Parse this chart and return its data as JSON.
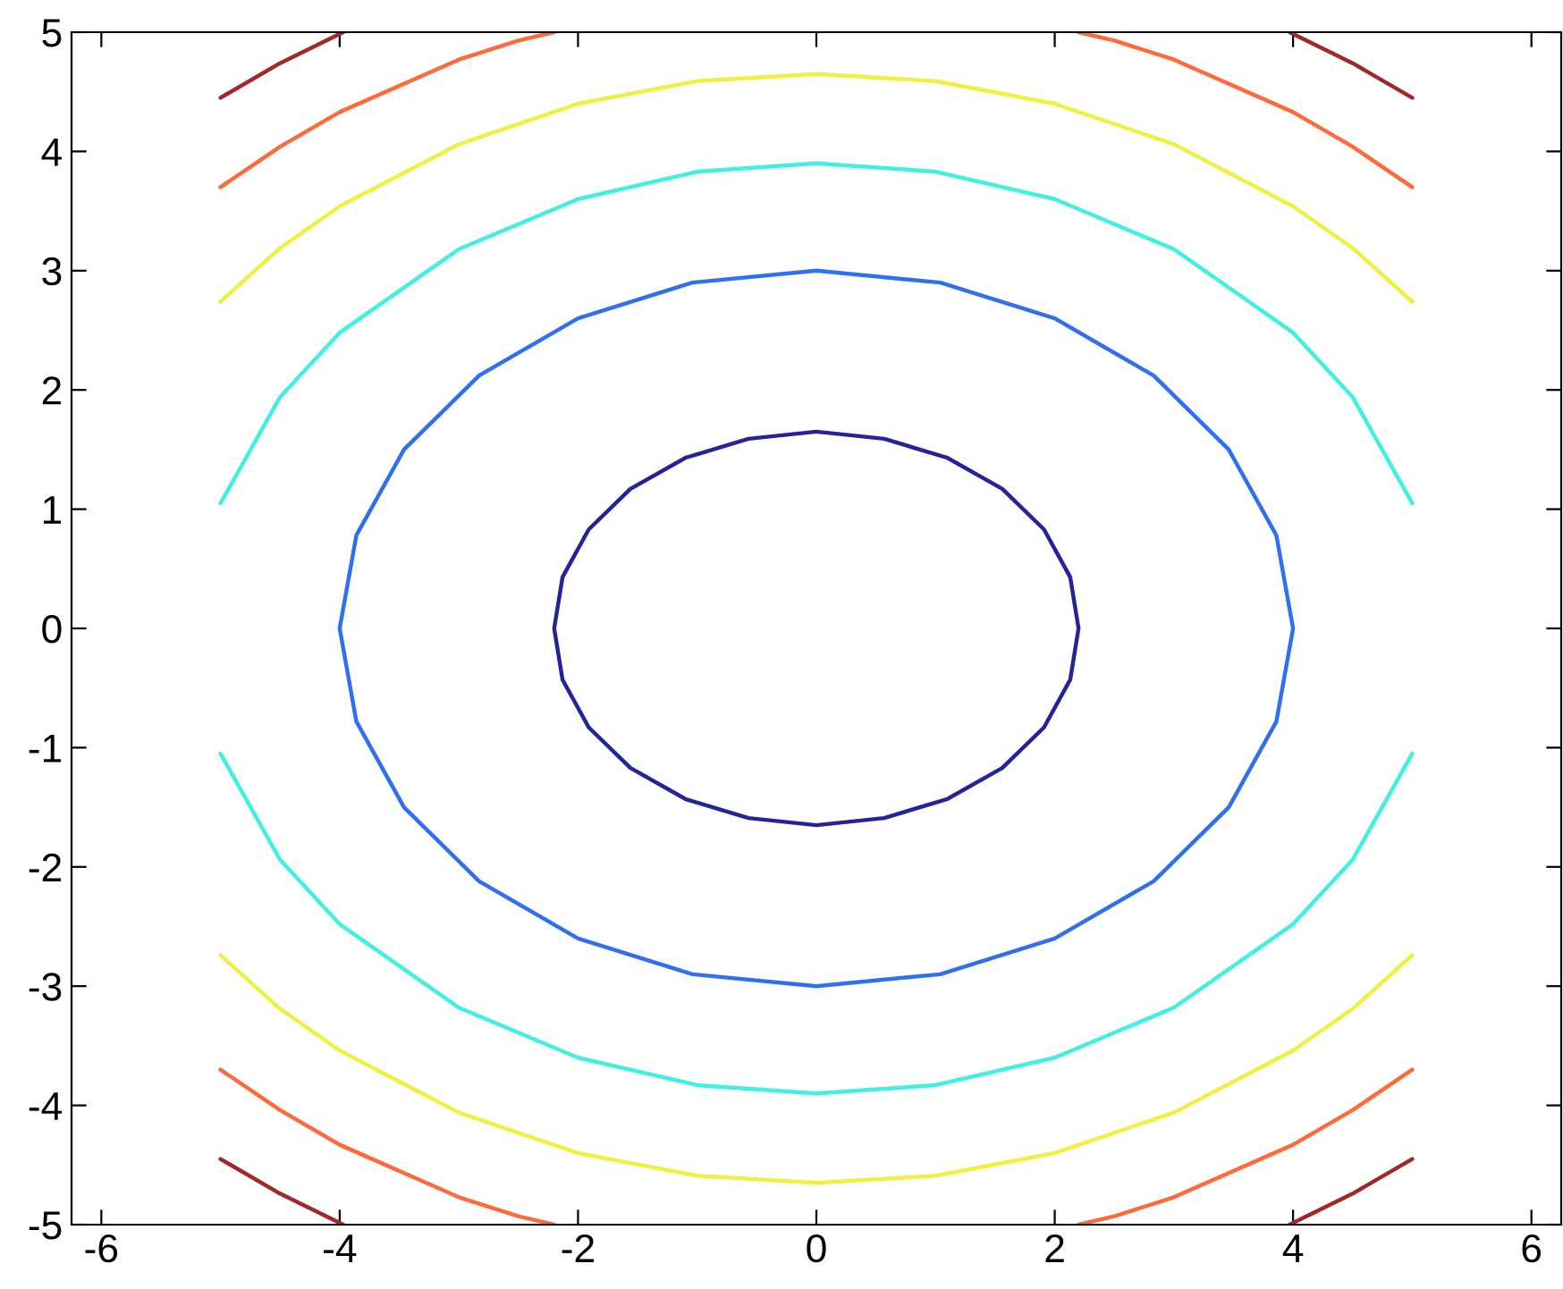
{
  "chart_data": {
    "type": "line",
    "xlim": [
      -6.25,
      6.25
    ],
    "ylim": [
      -5,
      5
    ],
    "xticks": [
      -6,
      -4,
      -2,
      0,
      2,
      4,
      6
    ],
    "yticks": [
      -5,
      -4,
      -3,
      -2,
      -1,
      0,
      1,
      2,
      3,
      4,
      5
    ],
    "grid": false,
    "series": [
      {
        "color": "#23239a",
        "x": [
          -2.2,
          -2.13,
          -1.91,
          -1.56,
          -1.1,
          -0.57,
          0,
          0.57,
          1.1,
          1.56,
          1.91,
          2.13,
          2.2,
          null,
          -2.2,
          -2.13,
          -1.91,
          -1.56,
          -1.1,
          -0.57,
          0,
          0.57,
          1.1,
          1.56,
          1.91,
          2.13,
          2.2
        ],
        "values": [
          0,
          0.43,
          0.83,
          1.17,
          1.43,
          1.59,
          1.65,
          1.59,
          1.43,
          1.17,
          0.83,
          0.43,
          0,
          null,
          0,
          -0.43,
          -0.83,
          -1.17,
          -1.43,
          -1.59,
          -1.65,
          -1.59,
          -1.43,
          -1.17,
          -0.83,
          -0.43,
          0
        ]
      },
      {
        "color": "#3070f0",
        "x": [
          -4,
          -3.86,
          -3.46,
          -2.83,
          -2,
          -1.04,
          0,
          1.04,
          2,
          2.83,
          3.46,
          3.86,
          4,
          null,
          -4,
          -3.86,
          -3.46,
          -2.83,
          -2,
          -1.04,
          0,
          1.04,
          2,
          2.83,
          3.46,
          3.86,
          4
        ],
        "values": [
          0,
          0.78,
          1.5,
          2.12,
          2.6,
          2.9,
          3,
          2.9,
          2.6,
          2.12,
          1.5,
          0.78,
          0,
          null,
          0,
          -0.78,
          -1.5,
          -2.12,
          -2.6,
          -2.9,
          -3,
          -2.9,
          -2.6,
          -2.12,
          -1.5,
          -0.78,
          0
        ]
      },
      {
        "color": "#40f0e0",
        "x": [
          -5,
          -4.5,
          -4,
          -3,
          -2,
          -1,
          0,
          1,
          2,
          3,
          4,
          4.5,
          5
        ],
        "values": [
          1.05,
          1.94,
          2.48,
          3.18,
          3.6,
          3.83,
          3.9,
          3.83,
          3.6,
          3.18,
          2.48,
          1.94,
          1.05
        ]
      },
      {
        "color": "#40f0e0",
        "x": [
          -5,
          -4.5,
          -4,
          -3,
          -2,
          -1,
          0,
          1,
          2,
          3,
          4,
          4.5,
          5
        ],
        "values": [
          -1.05,
          -1.94,
          -2.48,
          -3.18,
          -3.6,
          -3.83,
          -3.9,
          -3.83,
          -3.6,
          -3.18,
          -2.48,
          -1.94,
          -1.05
        ]
      },
      {
        "color": "#f0f040",
        "x": [
          -5,
          -4.5,
          -4,
          -3,
          -2,
          -1,
          0,
          1,
          2,
          3,
          4,
          4.5,
          5
        ],
        "values": [
          2.74,
          3.19,
          3.54,
          4.06,
          4.4,
          4.59,
          4.65,
          4.59,
          4.4,
          4.06,
          3.54,
          3.19,
          2.74
        ]
      },
      {
        "color": "#f0f040",
        "x": [
          -5,
          -4.5,
          -4,
          -3,
          -2,
          -1,
          0,
          1,
          2,
          3,
          4,
          4.5,
          5
        ],
        "values": [
          -2.74,
          -3.19,
          -3.54,
          -4.06,
          -4.4,
          -4.59,
          -4.65,
          -4.59,
          -4.4,
          -4.06,
          -3.54,
          -3.19,
          -2.74
        ]
      },
      {
        "color": "#ff6a3a",
        "x": [
          -5,
          -4.5,
          -4,
          -3,
          -2.5,
          -2.2
        ],
        "values": [
          3.7,
          4.04,
          4.33,
          4.77,
          4.93,
          5
        ]
      },
      {
        "color": "#ff6a3a",
        "x": [
          2.2,
          2.5,
          3,
          4,
          4.5,
          5
        ],
        "values": [
          5,
          4.93,
          4.77,
          4.33,
          4.04,
          3.7
        ]
      },
      {
        "color": "#ff6a3a",
        "x": [
          -5,
          -4.5,
          -4,
          -3,
          -2.5,
          -2.2
        ],
        "values": [
          -3.7,
          -4.04,
          -4.33,
          -4.77,
          -4.93,
          -5
        ]
      },
      {
        "color": "#ff6a3a",
        "x": [
          2.2,
          2.5,
          3,
          4,
          4.5,
          5
        ],
        "values": [
          -5,
          -4.93,
          -4.77,
          -4.33,
          -4.04,
          -3.7
        ]
      },
      {
        "color": "#a02828",
        "x": [
          -5,
          -4.5,
          -3.97
        ],
        "values": [
          4.45,
          4.74,
          5
        ]
      },
      {
        "color": "#a02828",
        "x": [
          3.97,
          4.5,
          5
        ],
        "values": [
          5,
          4.74,
          4.45
        ]
      },
      {
        "color": "#a02828",
        "x": [
          -5,
          -4.5,
          -3.97
        ],
        "values": [
          -4.45,
          -4.74,
          -5
        ]
      },
      {
        "color": "#a02828",
        "x": [
          3.97,
          4.5,
          5
        ],
        "values": [
          -5,
          -4.74,
          -4.45
        ]
      }
    ]
  }
}
